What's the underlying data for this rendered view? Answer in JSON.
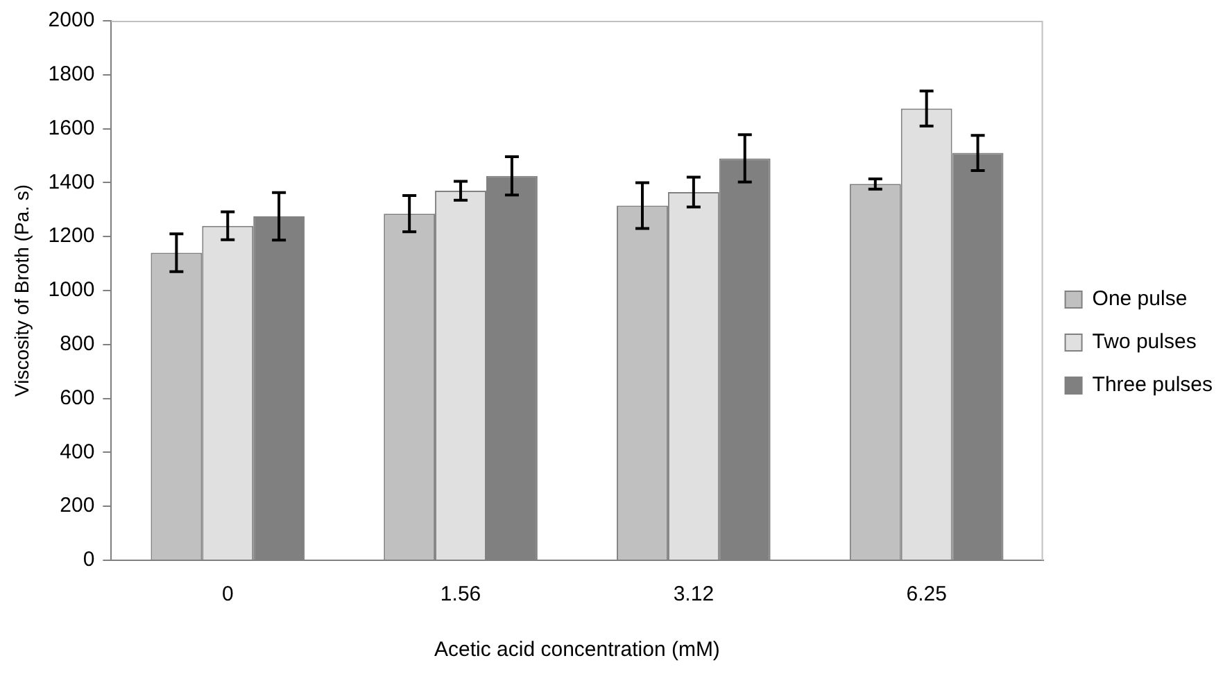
{
  "chart_data": {
    "type": "bar",
    "xlabel": "Acetic acid concentration (mM)",
    "ylabel": "Viscosity of Broth (Pa. s)",
    "categories": [
      "0",
      "1.56",
      "3.12",
      "6.25"
    ],
    "series": [
      {
        "name": "One pulse",
        "color": "#c0c0c0",
        "values": [
          1140,
          1285,
          1315,
          1395
        ],
        "errors": [
          70,
          67,
          85,
          19
        ]
      },
      {
        "name": "Two pulses",
        "color": "#e0e0e0",
        "values": [
          1240,
          1370,
          1365,
          1675
        ],
        "errors": [
          52,
          35,
          55,
          65
        ]
      },
      {
        "name": "Three pulses",
        "color": "#808080",
        "values": [
          1275,
          1425,
          1490,
          1510
        ],
        "errors": [
          88,
          71,
          88,
          65
        ]
      }
    ],
    "ylim": [
      0,
      2000
    ],
    "yticks": [
      0,
      200,
      400,
      600,
      800,
      1000,
      1200,
      1400,
      1600,
      1800,
      2000
    ],
    "grid": false,
    "legend": "right"
  }
}
